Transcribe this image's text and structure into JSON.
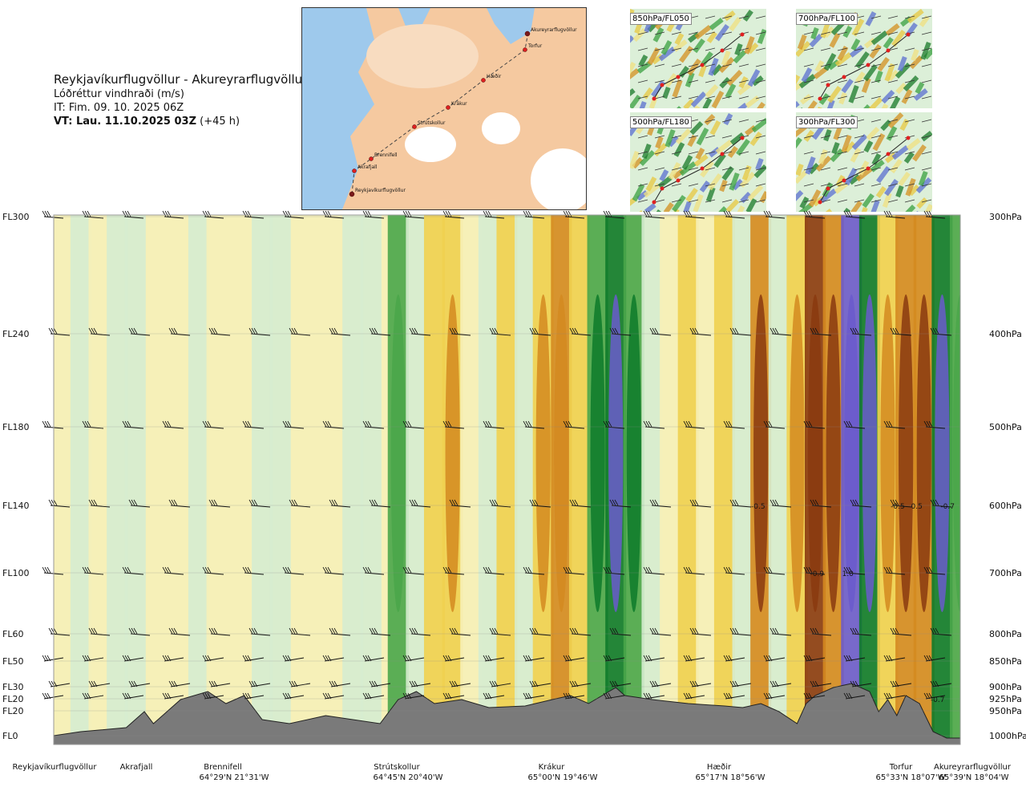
{
  "header": {
    "route": "Reykjavíkurflugvöllur - Akureyrarflugvöllur",
    "parameter": "Lóðréttur vindhraði (m/s)",
    "issue_time": "IT: Fim. 09. 10. 2025 06Z",
    "valid_time": "VT: Lau. 11.10.2025 03Z",
    "lead": "(+45 h)"
  },
  "route_map": {
    "points": [
      "Akureyrarflugvöllur",
      "Torfur",
      "Hæðir",
      "Krákur",
      "Strútskollur",
      "Brennifell",
      "Akrafjall",
      "Reykjavíkurflugvöllur"
    ]
  },
  "mini_maps": [
    {
      "label": "850hPa/FL050"
    },
    {
      "label": "700hPa/FL100"
    },
    {
      "label": "500hPa/FL180"
    },
    {
      "label": "300hPa/FL300"
    }
  ],
  "chart_data": {
    "type": "heatmap",
    "title": "Lóðréttur vindhraði (m/s)",
    "left_levels": [
      "FL300",
      "FL240",
      "FL180",
      "FL140",
      "FL100",
      "FL60",
      "FL50",
      "FL30",
      "FL20",
      "FL20",
      "FL0"
    ],
    "right_levels": [
      "300hPa",
      "400hPa",
      "500hPa",
      "600hPa",
      "700hPa",
      "800hPa",
      "850hPa",
      "900hPa",
      "925hPa",
      "950hPa",
      "1000hPa"
    ],
    "locations": [
      {
        "name": "Reykjavíkurflugvöllur",
        "coord": ""
      },
      {
        "name": "Akrafjall",
        "coord": ""
      },
      {
        "name": "Brennifell",
        "coord": "64°29'N 21°31'W"
      },
      {
        "name": "Strútskollur",
        "coord": "64°45'N 20°40'W"
      },
      {
        "name": "Krákur",
        "coord": "65°00'N 19°46'W"
      },
      {
        "name": "Hæðir",
        "coord": "65°17'N 18°56'W"
      },
      {
        "name": "Torfur",
        "coord": "65°33'N 18°07'W"
      },
      {
        "name": "Akureyrarflugvöllur",
        "coord": "65°39'N 18°04'W"
      }
    ],
    "labels": [
      {
        "text": "-0.5",
        "level": "600hPa",
        "pos": 0.777
      },
      {
        "text": "-0.5",
        "level": "600hPa",
        "pos": 0.931
      },
      {
        "text": "0.5",
        "level": "600hPa",
        "pos": 0.952
      },
      {
        "text": "-0.7",
        "level": "600hPa",
        "pos": 0.986
      },
      {
        "text": "-0.9",
        "level": "700hPa",
        "pos": 0.842
      },
      {
        "text": "1.0",
        "level": "700hPa",
        "pos": 0.876
      },
      {
        "text": "-0.7",
        "level": "925hPa",
        "pos": 0.975
      }
    ],
    "columns": [
      {
        "pos": 0.0,
        "v": 0.05
      },
      {
        "pos": 0.03,
        "v": 0.1
      },
      {
        "pos": 0.05,
        "v": -0.05
      },
      {
        "pos": 0.07,
        "v": 0.15
      },
      {
        "pos": 0.09,
        "v": 0.1
      },
      {
        "pos": 0.12,
        "v": -0.1
      },
      {
        "pos": 0.14,
        "v": 0.05
      },
      {
        "pos": 0.16,
        "v": 0.1
      },
      {
        "pos": 0.18,
        "v": -0.05
      },
      {
        "pos": 0.2,
        "v": -0.1
      },
      {
        "pos": 0.23,
        "v": 0.2
      },
      {
        "pos": 0.25,
        "v": 0.1
      },
      {
        "pos": 0.28,
        "v": -0.1
      },
      {
        "pos": 0.3,
        "v": 0.05
      },
      {
        "pos": 0.33,
        "v": 0.1
      },
      {
        "pos": 0.35,
        "v": 0.2
      },
      {
        "pos": 0.38,
        "v": 0.3
      },
      {
        "pos": 0.4,
        "v": 0.1
      },
      {
        "pos": 0.42,
        "v": -0.2
      },
      {
        "pos": 0.44,
        "v": -0.3
      },
      {
        "pos": 0.46,
        "v": -0.1
      },
      {
        "pos": 0.48,
        "v": 0.15
      },
      {
        "pos": 0.5,
        "v": -0.15
      },
      {
        "pos": 0.52,
        "v": 0.1
      },
      {
        "pos": 0.54,
        "v": -0.35
      },
      {
        "pos": 0.56,
        "v": -0.45
      },
      {
        "pos": 0.58,
        "v": -0.2
      },
      {
        "pos": 0.6,
        "v": 0.45
      },
      {
        "pos": 0.62,
        "v": 0.55
      },
      {
        "pos": 0.64,
        "v": 0.35
      },
      {
        "pos": 0.66,
        "v": 0.1
      },
      {
        "pos": 0.68,
        "v": -0.1
      },
      {
        "pos": 0.7,
        "v": -0.15
      },
      {
        "pos": 0.72,
        "v": -0.05
      },
      {
        "pos": 0.74,
        "v": -0.25
      },
      {
        "pos": 0.76,
        "v": 0.1
      },
      {
        "pos": 0.78,
        "v": -0.5
      },
      {
        "pos": 0.8,
        "v": 0.2
      },
      {
        "pos": 0.82,
        "v": -0.3
      },
      {
        "pos": 0.84,
        "v": -0.9
      },
      {
        "pos": 0.86,
        "v": -0.6
      },
      {
        "pos": 0.88,
        "v": 1.0
      },
      {
        "pos": 0.9,
        "v": 0.6
      },
      {
        "pos": 0.92,
        "v": -0.3
      },
      {
        "pos": 0.94,
        "v": -0.5
      },
      {
        "pos": 0.96,
        "v": -0.7
      },
      {
        "pos": 0.98,
        "v": 0.5
      },
      {
        "pos": 1.0,
        "v": 0.3
      }
    ]
  },
  "colors": {
    "strong_down": "#8a3a0f",
    "down": "#d48a20",
    "weak_down": "#f0d050",
    "neutral": "#f6f0b8",
    "weak_up": "#d6ecd0",
    "up": "#4aa64a",
    "strong_up": "#0d7a2a",
    "very_strong_up": "#6a5acd",
    "terrain": "#7a7a7a"
  }
}
